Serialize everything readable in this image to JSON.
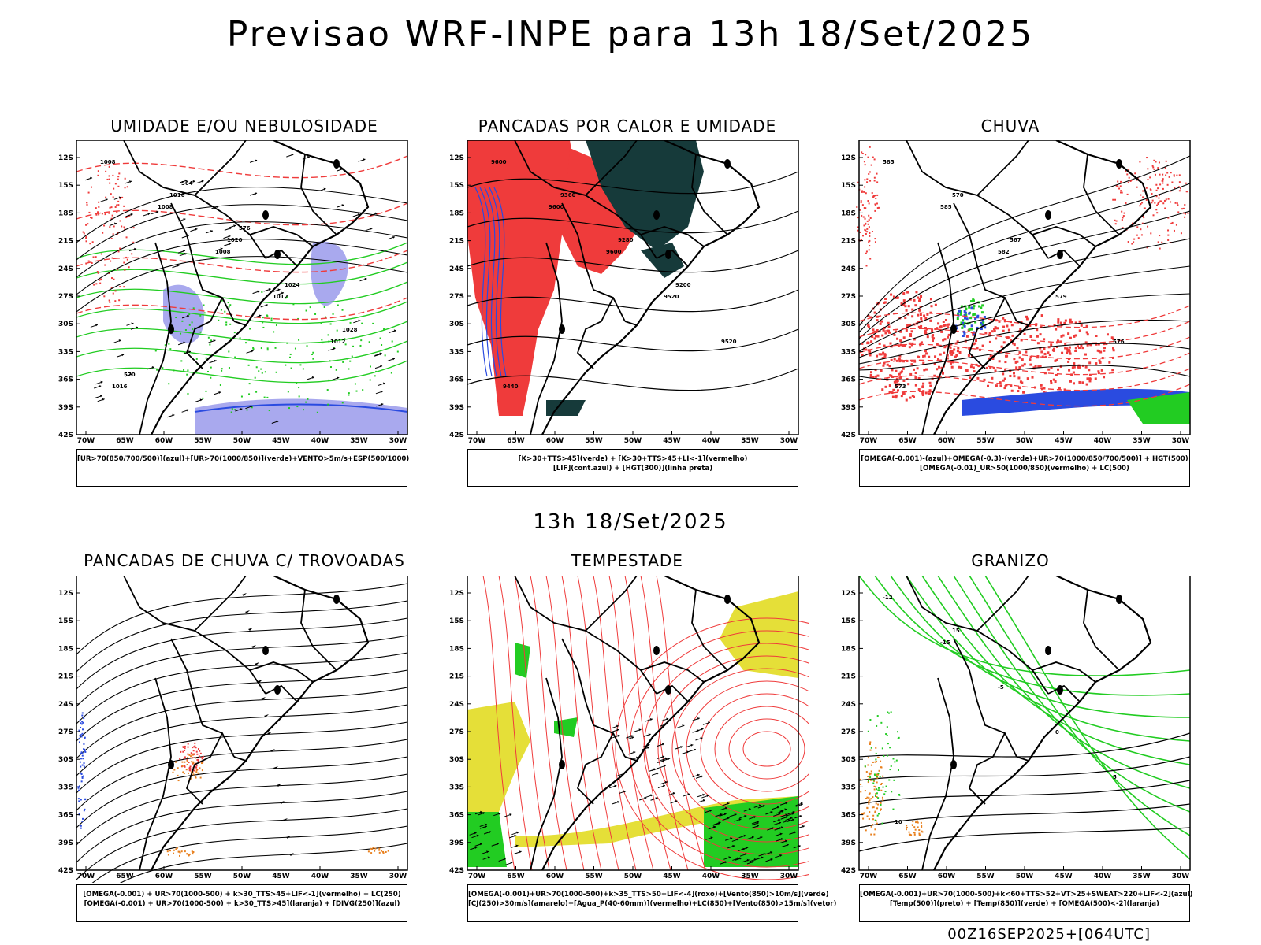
{
  "page": {
    "title": "Previsao WRF-INPE  para 13h 18/Set/2025",
    "mid_title": "13h 18/Set/2025",
    "footer": "00Z16SEP2025+[064UTC]"
  },
  "axes": {
    "lat_ticks": [
      "12S",
      "15S",
      "18S",
      "21S",
      "24S",
      "27S",
      "30S",
      "33S",
      "36S",
      "39S",
      "42S"
    ],
    "lon_ticks": [
      "70W",
      "65W",
      "60W",
      "55W",
      "50W",
      "45W",
      "40W",
      "35W",
      "30W"
    ]
  },
  "colors": {
    "red": "#ef3b3b",
    "green": "#22cc22",
    "blue": "#2a4be0",
    "lavender": "#a9a9ee",
    "dark_teal": "#163a3a",
    "yellow": "#e5df38",
    "orange": "#e8801e",
    "black": "#000000"
  },
  "panels": [
    {
      "id": "umidade",
      "title": "UMIDADE E/OU NEBULOSIDADE",
      "legend": [
        "[UR>70(850/700/500)](azul)+[UR>70(1000/850)](verde)+VENTO>5m/s+ESP(500/1000)"
      ],
      "labels": [
        "1008",
        "1008",
        "1008",
        "1012",
        "1012",
        "1016",
        "1016",
        "1020",
        "1024",
        "1028",
        "570",
        "564",
        "576"
      ]
    },
    {
      "id": "pancadas_calor",
      "title": "PANCADAS POR CALOR E UMIDADE",
      "legend": [
        "[K>30+TTS>45](verde) + [K>30+TTS>45+LI<-1](vermelho)",
        "[LIF](cont.azul) + [HGT(300)](linha preta)"
      ],
      "labels": [
        "9600",
        "9600",
        "9600",
        "9520",
        "9520",
        "9440",
        "9360",
        "9280",
        "9200"
      ]
    },
    {
      "id": "chuva",
      "title": "CHUVA",
      "legend": [
        "[OMEGA(-0.001)-(azul)+OMEGA(-0.3)-(verde)+UR>70(1000/850/700/500)] + HGT(500)",
        "[OMEGA(-0.01)_UR>50(1000/850)(vermelho) + LC(500)"
      ],
      "labels": [
        "585",
        "585",
        "582",
        "579",
        "576",
        "573",
        "570",
        "567"
      ]
    },
    {
      "id": "pancadas_trovoadas",
      "title": "PANCADAS DE CHUVA C/ TROVOADAS",
      "legend": [
        "[OMEGA(-0.001) + UR>70(1000-500) + k>30_TTS>45+LIF<-1](vermelho) + LC(250)",
        "[OMEGA(-0.001) + UR>70(1000-500) + k>30_TTS>45](laranja) + [DIVG(250)](azul)"
      ],
      "labels": []
    },
    {
      "id": "tempestade",
      "title": "TEMPESTADE",
      "legend": [
        "[OMEGA(-0.001)+UR>70(1000-500)+k>35_TTS>50+LIF<-4](roxo)+[Vento(850)>10m/s](verde)",
        "[CJ(250)>30m/s](amarelo)+[Agua_P(40-60mm)](vermelho)+LC(850)+[Vento(850)>15m/s](vetor)"
      ],
      "labels": []
    },
    {
      "id": "granizo",
      "title": "GRANIZO",
      "legend": [
        "[OMEGA(-0.001)+UR>70(1000-500)+k<60+TTS>52+VT>25+SWEAT>220+LIF<-2](azul)",
        "[Temp(500)](preto) + [Temp(850)](verde) + [OMEGA(500)<-2](laranja)"
      ],
      "labels": [
        "-12",
        "-15",
        "-5",
        "0",
        "5",
        "10",
        "15"
      ]
    }
  ]
}
